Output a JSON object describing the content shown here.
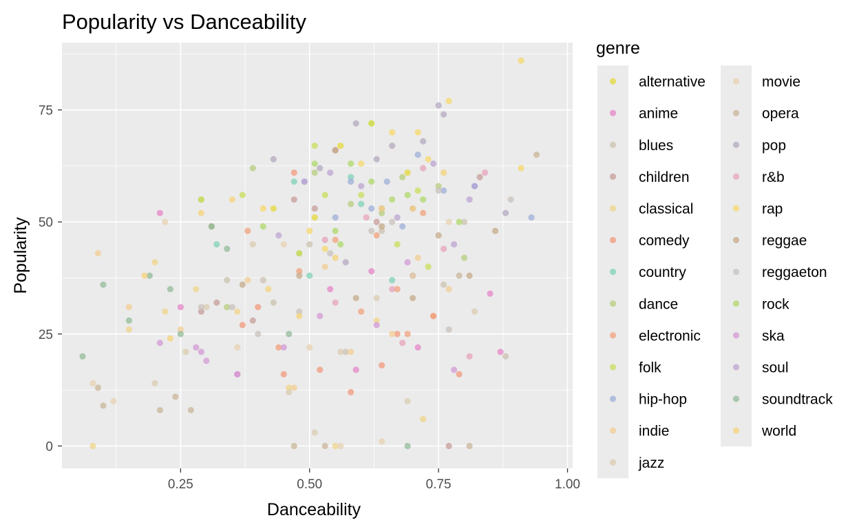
{
  "chart_data": {
    "type": "scatter",
    "title": "Popularity vs Danceability",
    "xlabel": "Danceability",
    "ylabel": "Popularity",
    "xlim": [
      0.02,
      1.01
    ],
    "ylim": [
      -5,
      90
    ],
    "xticks": [
      0.25,
      0.5,
      0.75,
      1.0
    ],
    "xtick_labels": [
      "0.25",
      "0.50",
      "0.75",
      "1.00"
    ],
    "yticks": [
      0,
      25,
      50,
      75
    ],
    "ytick_labels": [
      "0",
      "25",
      "50",
      "75"
    ],
    "grid": true,
    "legend": {
      "title": "genre",
      "placement": "right",
      "columns": 2
    },
    "series": [
      {
        "name": "alternative",
        "color": "#E5D83A",
        "x": [
          0.51,
          0.56,
          0.62,
          0.69,
          0.43
        ],
        "y": [
          51,
          67,
          72,
          61,
          53
        ]
      },
      {
        "name": "anime",
        "color": "#E586C8",
        "x": [
          0.21,
          0.25,
          0.36,
          0.54,
          0.59,
          0.71,
          0.82,
          0.85,
          0.87,
          0.62
        ],
        "y": [
          52,
          31,
          16,
          35,
          17,
          22,
          58,
          34,
          21,
          39
        ]
      },
      {
        "name": "blues",
        "color": "#CCC3B0",
        "x": [
          0.34,
          0.41,
          0.5,
          0.57,
          0.64,
          0.7,
          0.76,
          0.8,
          0.88,
          0.43
        ],
        "y": [
          37,
          37,
          45,
          21,
          48,
          38,
          36,
          50,
          20,
          32
        ]
      },
      {
        "name": "children",
        "color": "#C79E9A",
        "x": [
          0.29,
          0.32,
          0.39,
          0.47,
          0.51,
          0.55,
          0.63,
          0.7,
          0.77,
          0.83
        ],
        "y": [
          30,
          32,
          28,
          55,
          53,
          66,
          50,
          38,
          0,
          60
        ]
      },
      {
        "name": "classical",
        "color": "#F0D68A",
        "x": [
          0.08,
          0.15,
          0.2,
          0.22,
          0.28,
          0.36,
          0.46,
          0.55,
          0.63,
          0.72
        ],
        "y": [
          0,
          26,
          41,
          30,
          35,
          30,
          13,
          0,
          28,
          6
        ]
      },
      {
        "name": "comedy",
        "color": "#F19A7C",
        "x": [
          0.37,
          0.4,
          0.45,
          0.47,
          0.52,
          0.58,
          0.64,
          0.67,
          0.74,
          0.79
        ],
        "y": [
          27,
          31,
          16,
          61,
          17,
          12,
          18,
          25,
          29,
          16
        ]
      },
      {
        "name": "country",
        "color": "#7FD1B8",
        "x": [
          0.32,
          0.47,
          0.5,
          0.58,
          0.66,
          0.6
        ],
        "y": [
          45,
          59,
          38,
          60,
          37,
          54
        ]
      },
      {
        "name": "dance",
        "color": "#B7CE7E",
        "x": [
          0.29,
          0.34,
          0.39,
          0.48,
          0.51,
          0.58,
          0.64,
          0.68,
          0.75,
          0.8
        ],
        "y": [
          55,
          31,
          62,
          43,
          61,
          54,
          52,
          60,
          58,
          42
        ]
      },
      {
        "name": "electronic",
        "color": "#F2A17E",
        "x": [
          0.38,
          0.44,
          0.48,
          0.55,
          0.6,
          0.63,
          0.67,
          0.72,
          0.74,
          0.69
        ],
        "y": [
          48,
          22,
          39,
          46,
          30,
          47,
          35,
          52,
          29,
          25
        ]
      },
      {
        "name": "folk",
        "color": "#C9DE5C",
        "x": [
          0.29,
          0.37,
          0.51,
          0.53,
          0.6,
          0.62,
          0.67,
          0.71,
          0.73,
          0.48
        ],
        "y": [
          55,
          56,
          67,
          56,
          56,
          72,
          45,
          57,
          40,
          43
        ]
      },
      {
        "name": "hip-hop",
        "color": "#9FAFD8",
        "x": [
          0.49,
          0.55,
          0.58,
          0.62,
          0.65,
          0.68,
          0.71,
          0.76,
          0.82,
          0.93
        ],
        "y": [
          59,
          51,
          59,
          53,
          59,
          49,
          65,
          57,
          58,
          51
        ]
      },
      {
        "name": "indie",
        "color": "#F3CE94",
        "x": [
          0.09,
          0.15,
          0.25,
          0.38,
          0.47,
          0.53,
          0.58,
          0.66,
          0.71,
          0.77
        ],
        "y": [
          43,
          31,
          26,
          37,
          13,
          40,
          21,
          25,
          42,
          35
        ]
      },
      {
        "name": "jazz",
        "color": "#DBCCB0",
        "x": [
          0.2,
          0.26,
          0.3,
          0.39,
          0.46,
          0.51,
          0.56,
          0.63,
          0.69,
          0.82
        ],
        "y": [
          14,
          21,
          31,
          45,
          12,
          3,
          21,
          33,
          10,
          30
        ]
      },
      {
        "name": "movie",
        "color": "#E7D2B2",
        "x": [
          0.08,
          0.12,
          0.22,
          0.36,
          0.45,
          0.5,
          0.56,
          0.64,
          0.7,
          0.77
        ],
        "y": [
          14,
          10,
          50,
          22,
          45,
          22,
          0,
          1,
          38,
          50
        ]
      },
      {
        "name": "opera",
        "color": "#C9B69A",
        "x": [
          0.09,
          0.1,
          0.21,
          0.24,
          0.27,
          0.47,
          0.53,
          0.79,
          0.81,
          0.94
        ],
        "y": [
          13,
          9,
          8,
          11,
          8,
          0,
          0,
          38,
          0,
          65
        ]
      },
      {
        "name": "pop",
        "color": "#B4AABF",
        "x": [
          0.43,
          0.52,
          0.57,
          0.59,
          0.63,
          0.66,
          0.72,
          0.75,
          0.76,
          0.88
        ],
        "y": [
          64,
          62,
          41,
          72,
          64,
          67,
          68,
          76,
          74,
          52
        ]
      },
      {
        "name": "r&b",
        "color": "#E7A3BB",
        "x": [
          0.53,
          0.61,
          0.66,
          0.72,
          0.76,
          0.81,
          0.84,
          0.55,
          0.68
        ],
        "y": [
          46,
          51,
          35,
          62,
          44,
          20,
          61,
          32,
          23
        ]
      },
      {
        "name": "rap",
        "color": "#F7D86B",
        "x": [
          0.41,
          0.5,
          0.53,
          0.6,
          0.66,
          0.71,
          0.73,
          0.77,
          0.91,
          0.91
        ],
        "y": [
          53,
          48,
          44,
          63,
          70,
          70,
          64,
          77,
          62,
          86
        ]
      },
      {
        "name": "reggae",
        "color": "#C5AB8A",
        "x": [
          0.31,
          0.37,
          0.48,
          0.55,
          0.59,
          0.64,
          0.7,
          0.75,
          0.81,
          0.86
        ],
        "y": [
          49,
          36,
          38,
          66,
          33,
          49,
          33,
          47,
          38,
          48
        ]
      },
      {
        "name": "reggaeton",
        "color": "#C8C2BC",
        "x": [
          0.29,
          0.35,
          0.4,
          0.48,
          0.54,
          0.62,
          0.66,
          0.75,
          0.77,
          0.89
        ],
        "y": [
          31,
          31,
          25,
          30,
          43,
          48,
          50,
          57,
          26,
          55
        ]
      },
      {
        "name": "rock",
        "color": "#AFD86A",
        "x": [
          0.41,
          0.51,
          0.55,
          0.58,
          0.62,
          0.66,
          0.69,
          0.72,
          0.79,
          0.56
        ],
        "y": [
          49,
          63,
          48,
          63,
          59,
          55,
          56,
          55,
          50,
          45
        ]
      },
      {
        "name": "ska",
        "color": "#D39AD6",
        "x": [
          0.21,
          0.28,
          0.29,
          0.3,
          0.36,
          0.52,
          0.63,
          0.69,
          0.78,
          0.45
        ],
        "y": [
          23,
          22,
          21,
          19,
          16,
          29,
          27,
          41,
          17,
          22
        ]
      },
      {
        "name": "soul",
        "color": "#BCA4D2",
        "x": [
          0.44,
          0.49,
          0.54,
          0.6,
          0.67,
          0.7,
          0.74,
          0.78,
          0.81,
          0.64
        ],
        "y": [
          47,
          59,
          61,
          58,
          51,
          53,
          63,
          45,
          55,
          53
        ]
      },
      {
        "name": "soundtrack",
        "color": "#92BB98",
        "x": [
          0.06,
          0.1,
          0.15,
          0.19,
          0.23,
          0.25,
          0.31,
          0.34,
          0.46,
          0.69
        ],
        "y": [
          20,
          36,
          28,
          38,
          35,
          25,
          49,
          44,
          25,
          0
        ]
      },
      {
        "name": "world",
        "color": "#F5D37A",
        "x": [
          0.18,
          0.23,
          0.29,
          0.35,
          0.42,
          0.48,
          0.55,
          0.64,
          0.7,
          0.76
        ],
        "y": [
          38,
          24,
          52,
          55,
          35,
          29,
          42,
          53,
          53,
          61
        ]
      }
    ]
  }
}
